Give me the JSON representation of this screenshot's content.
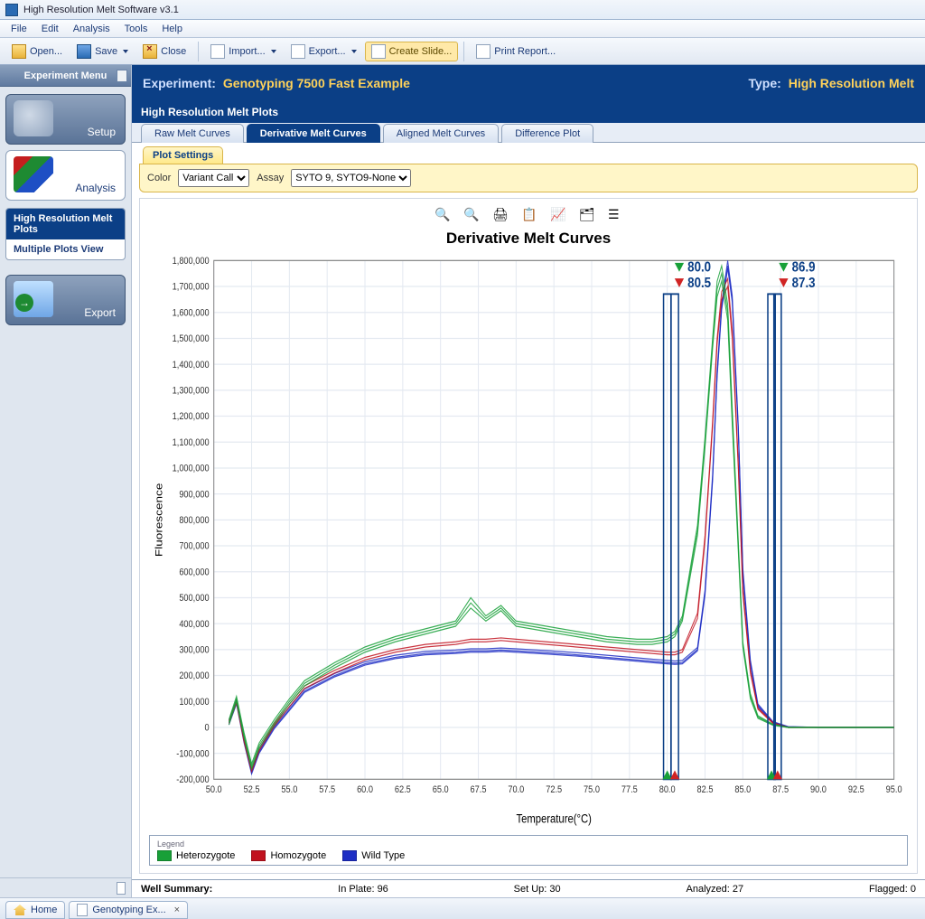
{
  "window_title": "High Resolution Melt Software v3.1",
  "menubar": [
    "File",
    "Edit",
    "Analysis",
    "Tools",
    "Help"
  ],
  "toolbar": {
    "open": "Open...",
    "save": "Save",
    "close": "Close",
    "import": "Import...",
    "export": "Export...",
    "create_slide": "Create Slide...",
    "print_report": "Print Report..."
  },
  "sidebar": {
    "header": "Experiment Menu",
    "setup": "Setup",
    "analysis": "Analysis",
    "export": "Export",
    "analysis_items": [
      {
        "label": "High Resolution Melt Plots",
        "selected": true
      },
      {
        "label": "Multiple Plots View",
        "selected": false
      }
    ]
  },
  "experiment": {
    "label": "Experiment:",
    "name": "Genotyping 7500 Fast Example",
    "type_label": "Type:",
    "type": "High Resolution Melt"
  },
  "plots_bar": "High Resolution Melt Plots",
  "tabs": [
    "Raw Melt Curves",
    "Derivative Melt Curves",
    "Aligned Melt Curves",
    "Difference Plot"
  ],
  "active_tab_index": 1,
  "plot_settings": {
    "tab_label": "Plot Settings",
    "color_label": "Color",
    "color_value": "Variant Call",
    "assay_label": "Assay",
    "assay_value": "SYTO 9, SYTO9-None"
  },
  "chart": {
    "type": "line",
    "title": "Derivative Melt Curves",
    "xlabel": "Temperature(°C)",
    "ylabel": "Fluorescence",
    "xlim": [
      50,
      95
    ],
    "xtick_step": 2.5,
    "ylim": [
      -200000,
      1800000
    ],
    "ytick_step": 100000,
    "ytick_format": "comma",
    "background_color": "#ffffff",
    "grid_color": "#e4e9f1",
    "axis_color": "#888888",
    "title_fontsize": 17,
    "label_fontsize": 11,
    "tick_fontsize": 9,
    "line_width": 1,
    "markers": {
      "pair1": {
        "low": 80.0,
        "high": 80.5,
        "color": "#0b3f86",
        "tri_colors": [
          "#18a038",
          "#d02424"
        ]
      },
      "pair2": {
        "low": 86.9,
        "high": 87.3,
        "color": "#0b3f86",
        "tri_colors": [
          "#18a038",
          "#d02424"
        ]
      }
    },
    "legend_title": "Legend",
    "legend": [
      {
        "name": "Heterozygote",
        "color": "#18a038"
      },
      {
        "name": "Homozygote",
        "color": "#c1121f"
      },
      {
        "name": "Wild Type",
        "color": "#1e2ec4"
      }
    ],
    "series": {
      "x": [
        51,
        51.5,
        52,
        52.5,
        53,
        54,
        55,
        56,
        58,
        60,
        62,
        64,
        66,
        67,
        68,
        69,
        70,
        72,
        74,
        76,
        78,
        79,
        80,
        80.5,
        81,
        82,
        82.5,
        83,
        83.3,
        83.6,
        84,
        84.3,
        84.7,
        85,
        85.5,
        86,
        87,
        88,
        90,
        92,
        95
      ],
      "hetero": [
        [
          20,
          110,
          -30,
          -150,
          -70,
          20,
          100,
          170,
          240,
          300,
          340,
          370,
          400,
          480,
          420,
          460,
          400,
          380,
          360,
          340,
          330,
          330,
          340,
          360,
          420,
          760,
          1100,
          1480,
          1690,
          1750,
          1600,
          1200,
          700,
          320,
          120,
          40,
          10,
          0,
          0,
          0,
          0
        ],
        [
          10,
          100,
          -40,
          -160,
          -80,
          10,
          90,
          160,
          230,
          290,
          330,
          360,
          390,
          460,
          410,
          450,
          390,
          370,
          350,
          330,
          320,
          320,
          330,
          350,
          410,
          740,
          1080,
          1460,
          1660,
          1720,
          1570,
          1170,
          680,
          310,
          110,
          35,
          8,
          0,
          0,
          0,
          0
        ],
        [
          30,
          120,
          -20,
          -140,
          -60,
          30,
          110,
          180,
          250,
          310,
          350,
          380,
          410,
          500,
          430,
          470,
          410,
          390,
          370,
          350,
          340,
          340,
          350,
          370,
          430,
          780,
          1120,
          1500,
          1720,
          1780,
          1630,
          1230,
          720,
          330,
          130,
          45,
          12,
          0,
          0,
          0,
          0
        ]
      ],
      "homo": [
        [
          15,
          95,
          -55,
          -170,
          -90,
          5,
          80,
          150,
          210,
          260,
          290,
          310,
          320,
          330,
          330,
          335,
          330,
          320,
          310,
          300,
          290,
          285,
          280,
          280,
          290,
          420,
          720,
          1160,
          1480,
          1650,
          1700,
          1500,
          1000,
          520,
          210,
          70,
          15,
          0,
          0,
          0,
          0
        ],
        [
          25,
          105,
          -45,
          -160,
          -80,
          15,
          90,
          160,
          220,
          270,
          300,
          320,
          330,
          340,
          340,
          345,
          340,
          330,
          320,
          310,
          300,
          295,
          290,
          290,
          300,
          440,
          740,
          1180,
          1500,
          1680,
          1730,
          1530,
          1020,
          540,
          220,
          75,
          18,
          0,
          0,
          0,
          0
        ]
      ],
      "wild": [
        [
          18,
          100,
          -50,
          -175,
          -95,
          0,
          70,
          140,
          200,
          245,
          270,
          285,
          290,
          295,
          295,
          298,
          295,
          288,
          280,
          270,
          260,
          255,
          250,
          248,
          250,
          300,
          520,
          960,
          1360,
          1620,
          1780,
          1650,
          1150,
          600,
          250,
          85,
          20,
          2,
          0,
          0,
          0
        ],
        [
          10,
          90,
          -60,
          -180,
          -100,
          -5,
          65,
          135,
          195,
          240,
          265,
          280,
          285,
          290,
          290,
          293,
          290,
          283,
          275,
          265,
          255,
          250,
          245,
          243,
          245,
          295,
          510,
          950,
          1350,
          1610,
          1770,
          1640,
          1140,
          590,
          245,
          80,
          18,
          1,
          0,
          0,
          0
        ],
        [
          26,
          108,
          -42,
          -168,
          -88,
          8,
          78,
          148,
          208,
          253,
          278,
          293,
          298,
          303,
          303,
          306,
          303,
          296,
          288,
          278,
          268,
          263,
          258,
          256,
          258,
          308,
          530,
          975,
          1375,
          1635,
          1800,
          1665,
          1165,
          615,
          260,
          90,
          22,
          3,
          0,
          0,
          0
        ]
      ]
    }
  },
  "well_summary": {
    "title": "Well Summary:",
    "in_plate_label": "In Plate:",
    "in_plate": 96,
    "set_up_label": "Set Up:",
    "set_up": 30,
    "analyzed_label": "Analyzed:",
    "analyzed": 27,
    "flagged_label": "Flagged:",
    "flagged": 0
  },
  "bottom_tabs": {
    "home": "Home",
    "doc": "Genotyping Ex..."
  }
}
